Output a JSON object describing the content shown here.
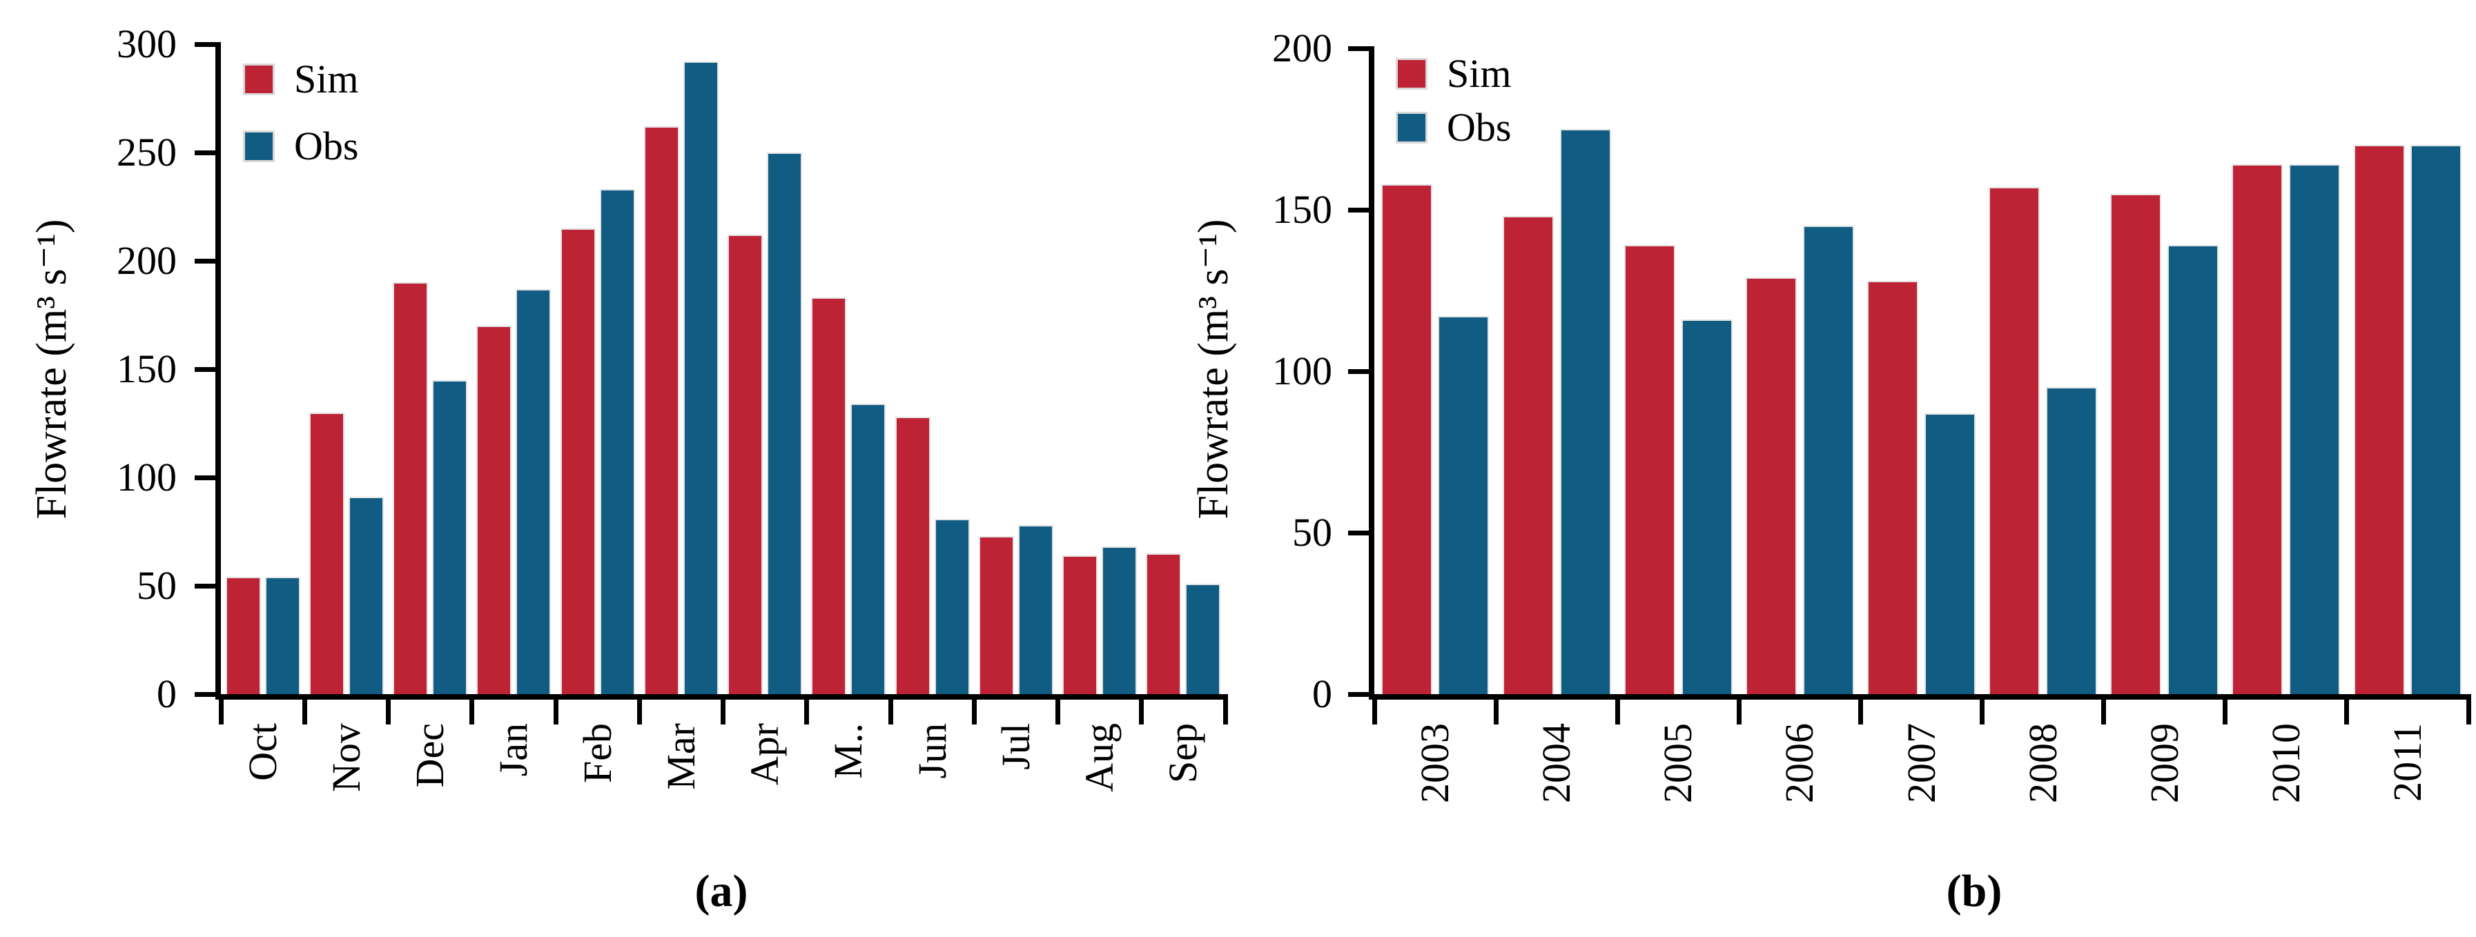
{
  "figure": {
    "background": "#ffffff",
    "axis_color": "#000000",
    "bar_outline_color": "#e3e3e3",
    "sim_color": "#bd2235",
    "obs_color": "#115c82"
  },
  "chart_data": [
    {
      "panel": "a",
      "type": "bar",
      "caption": "(a)",
      "ylabel": "Flowrate (m³ s⁻¹)",
      "ylim": [
        0,
        300
      ],
      "yticks": [
        0,
        50,
        100,
        150,
        200,
        250,
        300
      ],
      "grid": false,
      "legend_position": "top-left",
      "legend": [
        "Sim",
        "Obs"
      ],
      "categories": [
        "Oct",
        "Nov",
        "Dec",
        "Jan",
        "Feb",
        "Mar",
        "Apr",
        "M..",
        "Jun",
        "Jul",
        "Aug",
        "Sep"
      ],
      "series": [
        {
          "name": "Sim",
          "color": "#bd2235",
          "values": [
            54,
            130,
            190,
            170,
            215,
            262,
            212,
            183,
            128,
            73,
            64,
            65
          ]
        },
        {
          "name": "Obs",
          "color": "#115c82",
          "values": [
            54,
            91,
            145,
            187,
            233,
            292,
            250,
            134,
            81,
            78,
            68,
            51
          ]
        }
      ]
    },
    {
      "panel": "b",
      "type": "bar",
      "caption": "(b)",
      "ylabel": "Flowrate (m³ s⁻¹)",
      "ylim": [
        0,
        200
      ],
      "yticks": [
        0,
        50,
        100,
        150,
        200
      ],
      "grid": false,
      "legend_position": "top-left",
      "legend": [
        "Sim",
        "Obs"
      ],
      "categories": [
        "2003",
        "2004",
        "2005",
        "2006",
        "2007",
        "2008",
        "2009",
        "2010",
        "2011"
      ],
      "series": [
        {
          "name": "Sim",
          "color": "#bd2235",
          "values": [
            158,
            148,
            139,
            129,
            128,
            157,
            155,
            164,
            170
          ]
        },
        {
          "name": "Obs",
          "color": "#115c82",
          "values": [
            117,
            175,
            116,
            145,
            87,
            95,
            139,
            164,
            170
          ]
        }
      ]
    }
  ]
}
